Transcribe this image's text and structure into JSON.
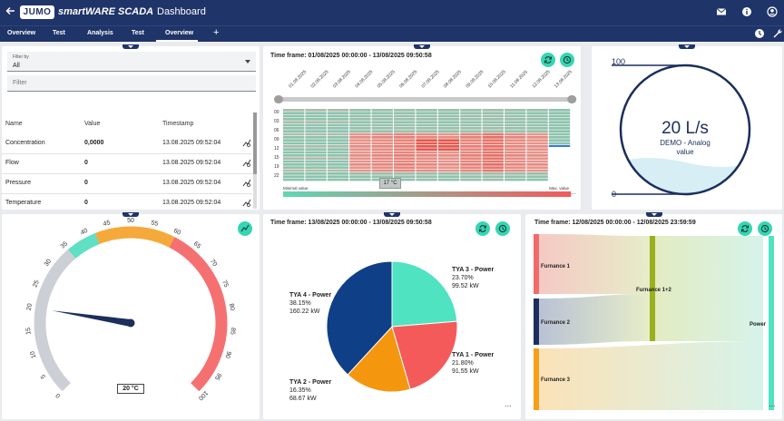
{
  "app": {
    "brand_logo": "JUMO",
    "brand_name": "smartWARE SCADA",
    "page_title": "Dashboard"
  },
  "icons": {
    "back": "back-arrow-icon",
    "mail": "mail-icon",
    "info": "info-icon",
    "account": "account-icon",
    "clock": "clock-icon",
    "wrench": "wrench-icon"
  },
  "tabs": [
    {
      "label": "Overview"
    },
    {
      "label": "Test"
    },
    {
      "label": "Analysis"
    },
    {
      "label": "Test"
    },
    {
      "label": "Overview"
    }
  ],
  "active_tab": 4,
  "table_panel": {
    "filter_by_label": "Filter by",
    "filter_by_value": "All",
    "filter_placeholder": "Filter",
    "headers": {
      "name": "Name",
      "value": "Value",
      "timestamp": "Timestamp"
    },
    "rows": [
      {
        "name": "Concentration",
        "value": "0,0000",
        "timestamp": "13.08.2025 09:52:04"
      },
      {
        "name": "Flow",
        "value": "0",
        "timestamp": "13.08.2025 09:52:04"
      },
      {
        "name": "Pressure",
        "value": "0",
        "timestamp": "13.08.2025 09:52:04"
      },
      {
        "name": "Temperature",
        "value": "0",
        "timestamp": "13.08.2025 09:52:04"
      }
    ]
  },
  "heatmap_panel": {
    "timeframe": "Time frame: 01/08/2025 00:00:00 - 13/08/2025 09:50:58",
    "dates": [
      "01.08.2025",
      "02.08.2025",
      "03.08.2025",
      "04.08.2025",
      "05.08.2025",
      "06.08.2025",
      "07.08.2025",
      "08.08.2025",
      "09.08.2025",
      "10.08.2025",
      "11.08.2025",
      "12.08.2025",
      "13.08.2025"
    ],
    "hours": [
      "00",
      "03",
      "06",
      "09",
      "12",
      "15",
      "19",
      "22"
    ],
    "min_label": "Minimal value",
    "max_label": "Max. value",
    "tooltip": "17 °C",
    "more": "..."
  },
  "analog_panel": {
    "top_scale": "100",
    "bottom_scale": "0",
    "value": "20 L/s",
    "label": "DEMO - Analog value"
  },
  "gauge_panel": {
    "ticks": [
      "0",
      "5",
      "10",
      "15",
      "20",
      "25",
      "30",
      "35",
      "40",
      "45",
      "50",
      "55",
      "60",
      "65",
      "70",
      "75",
      "80",
      "85",
      "90",
      "95",
      "100"
    ],
    "value": 20,
    "value_label": "20 °C",
    "colors": {
      "low": "#ccd0d6",
      "ok": "#5fe0c2",
      "mid": "#f5a93a",
      "high": "#f57171",
      "needle": "#1b2e5c"
    }
  },
  "pie_panel": {
    "timeframe": "Time frame: 13/08/2025 00:00:00 - 13/08/2025 09:50:58",
    "chart_data": {
      "type": "pie",
      "slices": [
        {
          "name": "TYA 3 - Power",
          "percent": "23.70%",
          "kw": "99.52 kW",
          "value": 23.7,
          "color": "#4fe3c2"
        },
        {
          "name": "TYA 1 - Power",
          "percent": "21.80%",
          "kw": "91.55 kW",
          "value": 21.8,
          "color": "#f55a5a"
        },
        {
          "name": "TYA 2 - Power",
          "percent": "16.35%",
          "kw": "68.67 kW",
          "value": 16.35,
          "color": "#f5960f"
        },
        {
          "name": "TYA 4 - Power",
          "percent": "38.15%",
          "kw": "160.22 kW",
          "value": 38.15,
          "color": "#0f3f86"
        }
      ]
    },
    "more": "..."
  },
  "sankey_panel": {
    "timeframe": "Time frame: 12/08/2025 00:00:00 - 12/08/2025 23:59:59",
    "nodes": {
      "f1": "Furnance 1",
      "f2": "Furnance 2",
      "f3": "Furnance 3",
      "f12": "Furnance 1+2",
      "power": "Power"
    },
    "more": "..."
  }
}
